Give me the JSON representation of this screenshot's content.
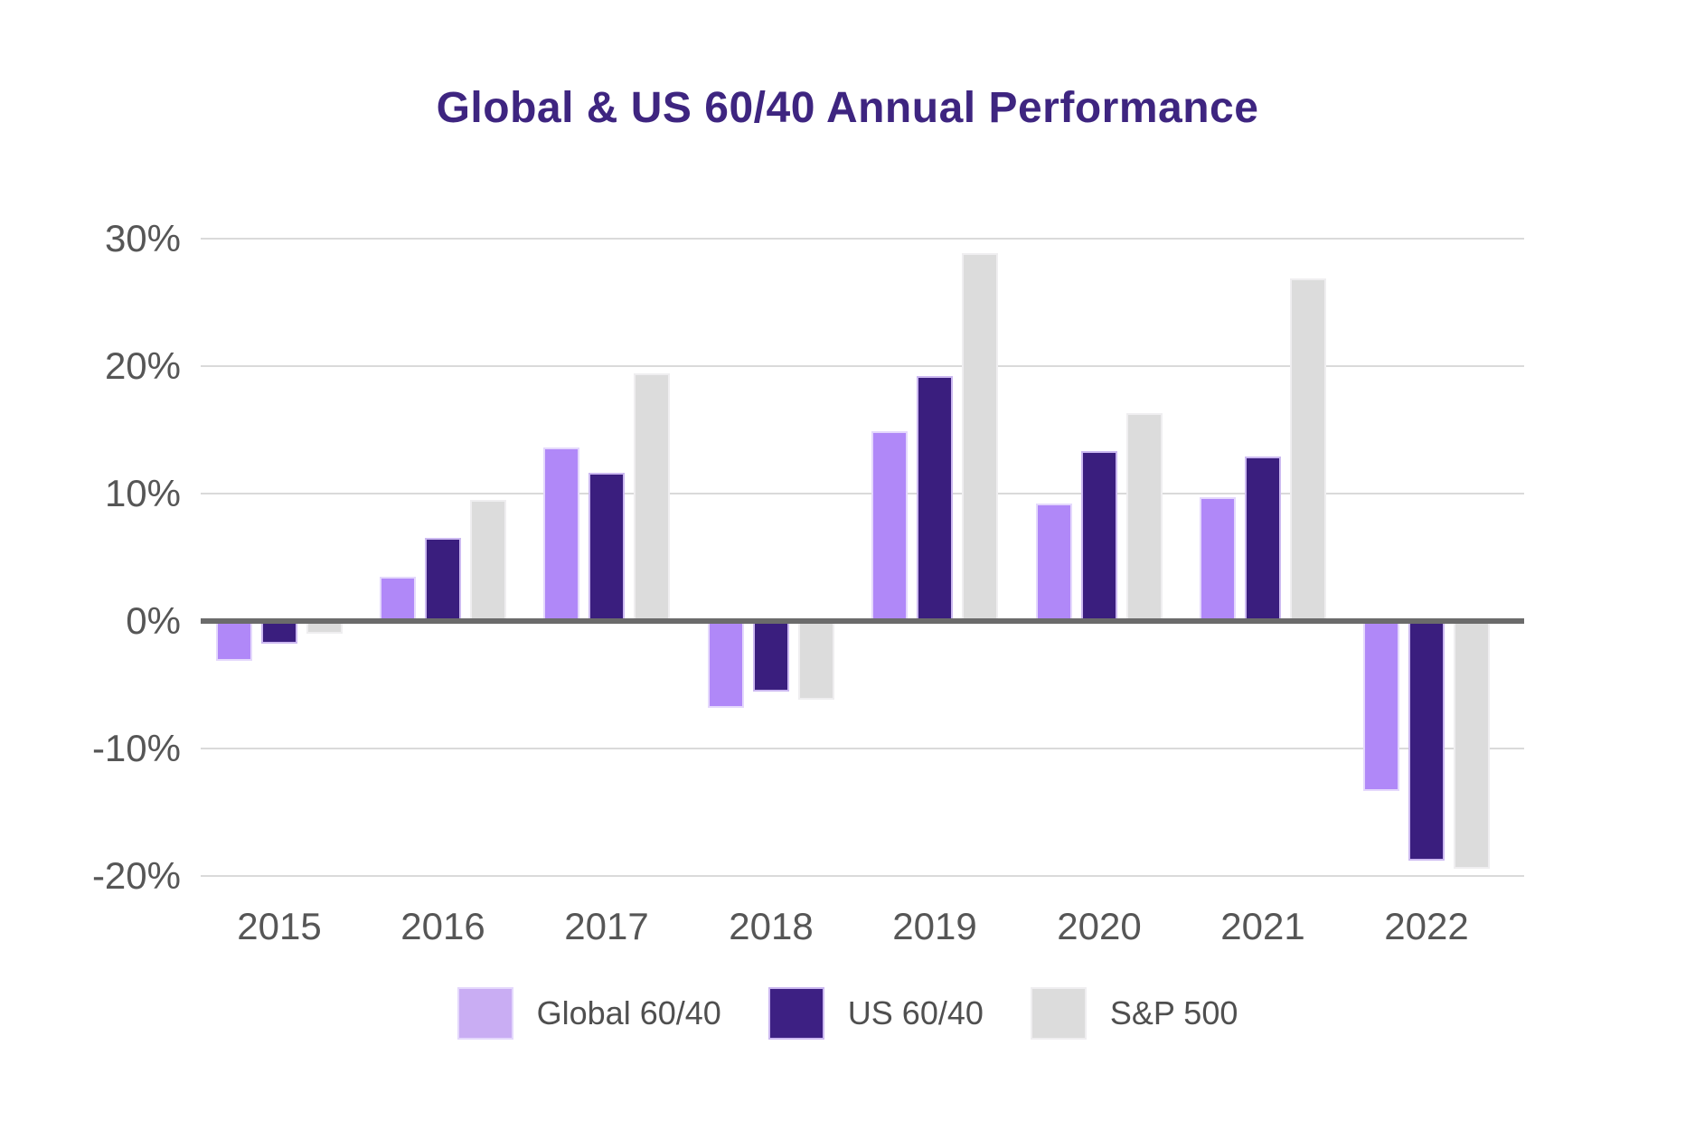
{
  "title": "Global & US 60/40 Annual Performance",
  "chart_data": {
    "type": "bar",
    "title": "Global & US 60/40 Annual Performance",
    "categories": [
      "2015",
      "2016",
      "2017",
      "2018",
      "2019",
      "2020",
      "2021",
      "2022"
    ],
    "series": [
      {
        "name": "Global 60/40",
        "color": "#b088f8",
        "legend_color": "#c9adf3",
        "stroke": "#e4d8fc",
        "values": [
          -3.1,
          3.5,
          13.6,
          -6.8,
          14.9,
          9.2,
          9.7,
          -13.3
        ]
      },
      {
        "name": "US 60/40",
        "color": "#3a1e7e",
        "legend_color": "#3d2083",
        "stroke": "#cbb8f0",
        "values": [
          -1.8,
          6.5,
          11.6,
          -5.5,
          19.2,
          13.3,
          12.9,
          -18.8
        ]
      },
      {
        "name": "S&P 500",
        "color": "#dcdcdc",
        "legend_color": "#dcdcdc",
        "stroke": "#efeef0",
        "values": [
          -1.0,
          9.5,
          19.4,
          -6.2,
          28.9,
          16.3,
          26.9,
          -19.4
        ]
      }
    ],
    "yticks": [
      30,
      20,
      10,
      0,
      -10,
      -20
    ],
    "ytick_labels": [
      "30%",
      "20%",
      "10%",
      "0%",
      "-10%",
      "-20%"
    ],
    "ylim": [
      -22,
      32
    ],
    "unit": "%",
    "grid": true,
    "legend_position": "bottom",
    "title_color": "#3e2580",
    "axis_text_color": "#565656",
    "legend_text_color": "#4f4f4f",
    "gridline_color": "#dadada",
    "zero_line_color": "#6b6b6b",
    "background": "#ffffff"
  }
}
